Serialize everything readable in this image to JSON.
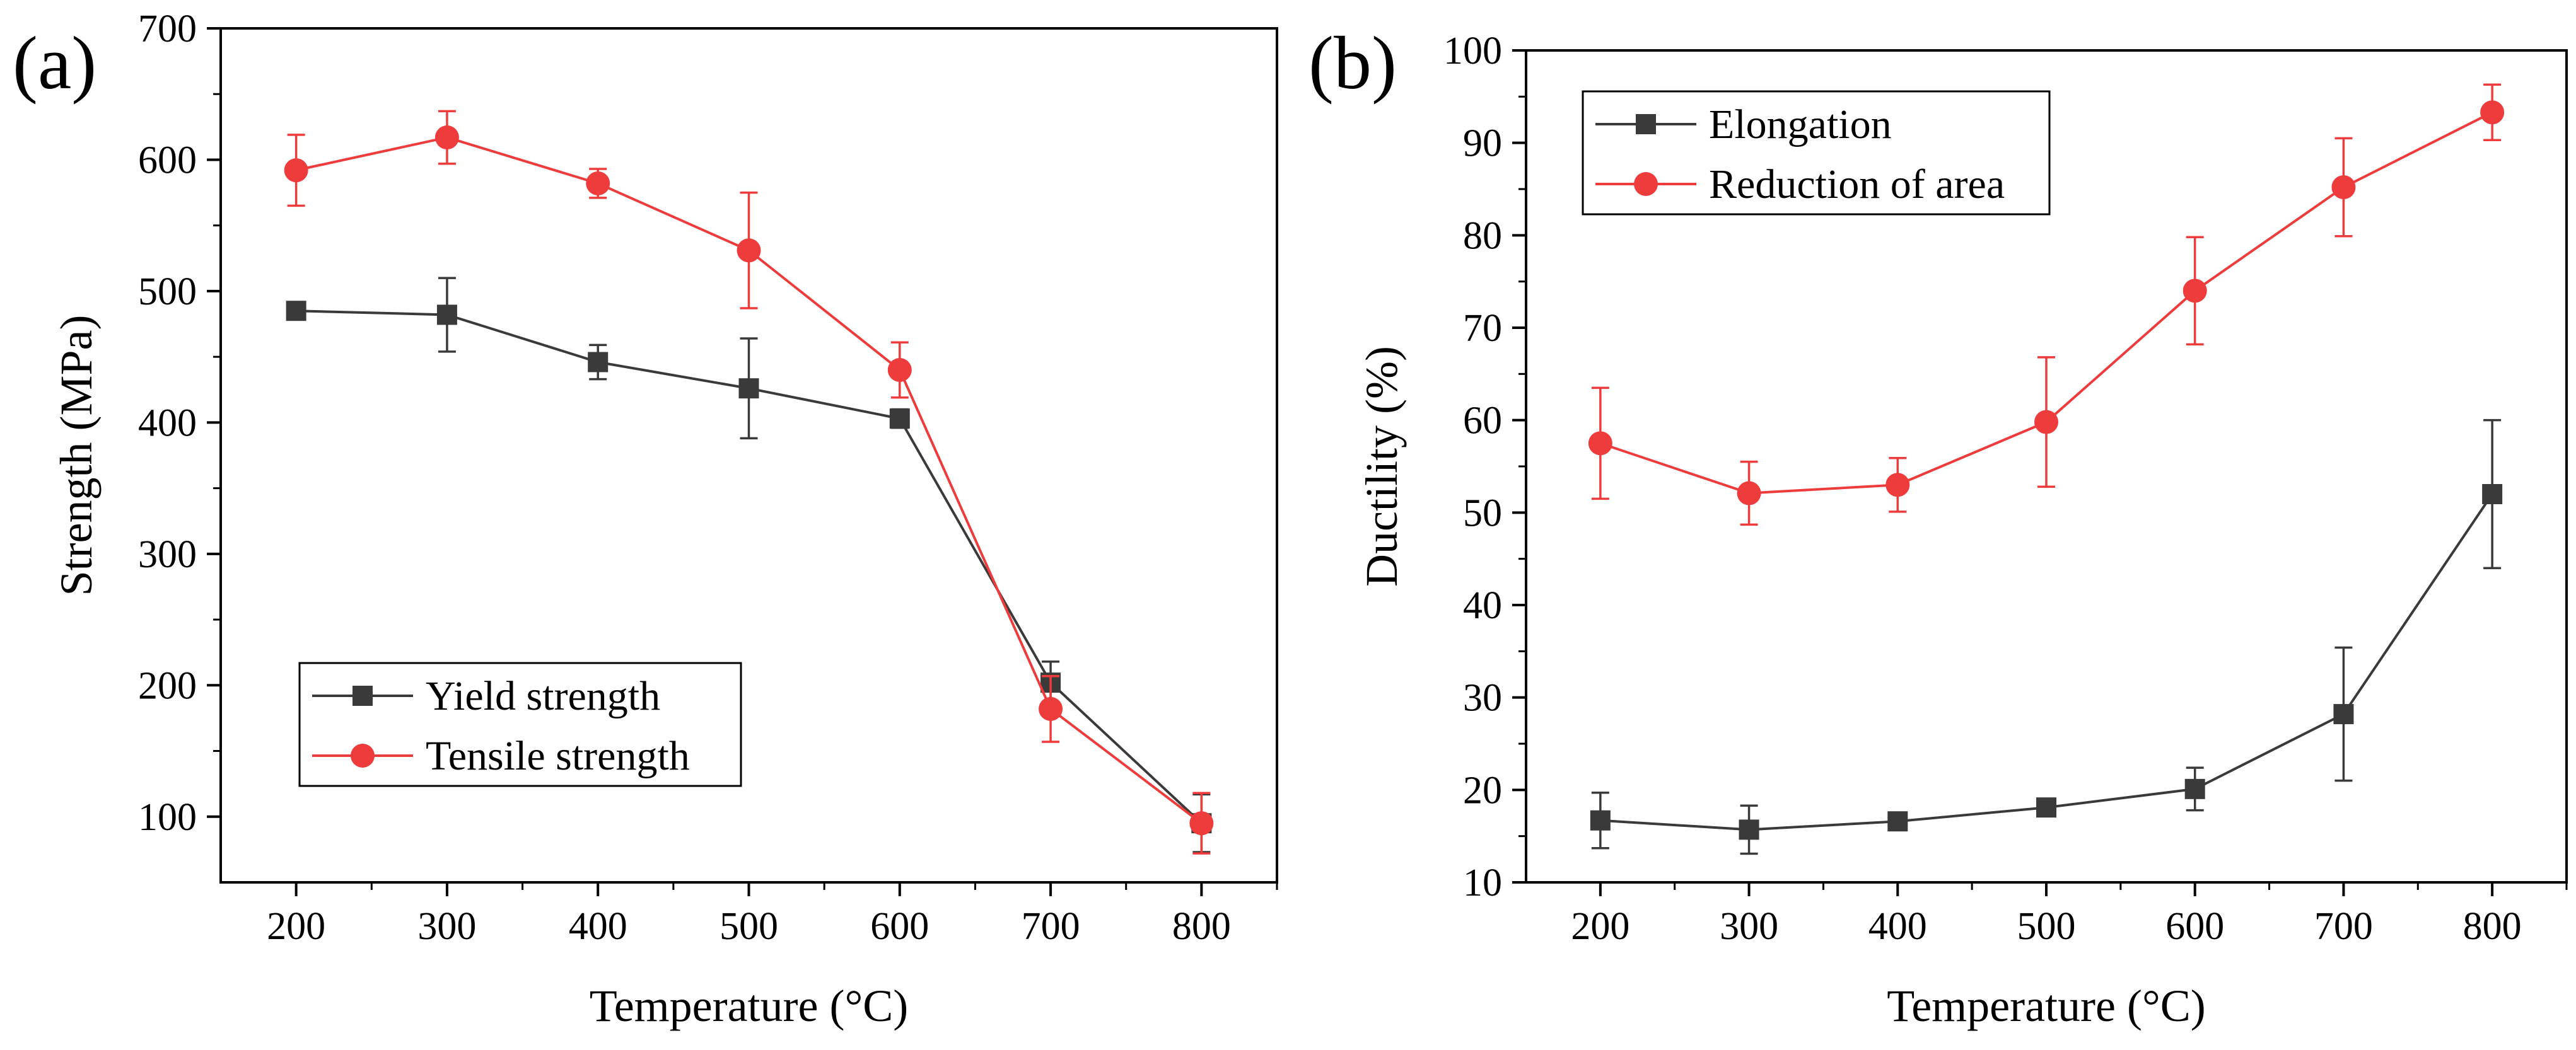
{
  "colors": {
    "series_black": "#3a3a3a",
    "series_red": "#ee3b3b",
    "axis": "#000000"
  },
  "chart_data": [
    {
      "panel_label": "(a)",
      "type": "line",
      "title": "",
      "xlabel": "Temperature (°C)",
      "ylabel": "Strength (MPa)",
      "xlim": [
        150,
        850
      ],
      "ylim": [
        50,
        700
      ],
      "xticks": [
        200,
        300,
        400,
        500,
        600,
        700,
        800
      ],
      "yticks": [
        100,
        200,
        300,
        400,
        500,
        600,
        700
      ],
      "legend_position": "bottom-left",
      "series": [
        {
          "name": "Yield strength",
          "marker": "square",
          "color": "#3a3a3a",
          "x": [
            200,
            300,
            400,
            500,
            600,
            700,
            800
          ],
          "y": [
            485,
            482,
            446,
            426,
            403,
            202,
            95
          ],
          "err": [
            3,
            28,
            13,
            38,
            7,
            16,
            22
          ]
        },
        {
          "name": "Tensile strength",
          "marker": "circle",
          "color": "#ee3b3b",
          "x": [
            200,
            300,
            400,
            500,
            600,
            700,
            800
          ],
          "y": [
            592,
            617,
            582,
            531,
            440,
            182,
            95
          ],
          "err": [
            27,
            20,
            11,
            44,
            21,
            25,
            23
          ]
        }
      ]
    },
    {
      "panel_label": "(b)",
      "type": "line",
      "title": "",
      "xlabel": "Temperature (°C)",
      "ylabel": "Ductility (%)",
      "xlim": [
        150,
        850
      ],
      "ylim": [
        10,
        100
      ],
      "xticks": [
        200,
        300,
        400,
        500,
        600,
        700,
        800
      ],
      "yticks": [
        10,
        20,
        30,
        40,
        50,
        60,
        70,
        80,
        90,
        100
      ],
      "legend_position": "top-left",
      "series": [
        {
          "name": "Elongation",
          "marker": "square",
          "color": "#3a3a3a",
          "x": [
            200,
            300,
            400,
            500,
            600,
            700,
            800
          ],
          "y": [
            16.7,
            15.7,
            16.6,
            18.1,
            20.1,
            28.2,
            52
          ],
          "err": [
            3,
            2.6,
            0.6,
            0.6,
            2.3,
            7.2,
            8
          ]
        },
        {
          "name": "Reduction of area",
          "marker": "circle",
          "color": "#ee3b3b",
          "x": [
            200,
            300,
            400,
            500,
            600,
            700,
            800
          ],
          "y": [
            57.5,
            52.1,
            53,
            59.8,
            74,
            85.2,
            93.3
          ],
          "err": [
            6,
            3.4,
            2.9,
            7,
            5.8,
            5.3,
            3
          ]
        }
      ]
    }
  ]
}
